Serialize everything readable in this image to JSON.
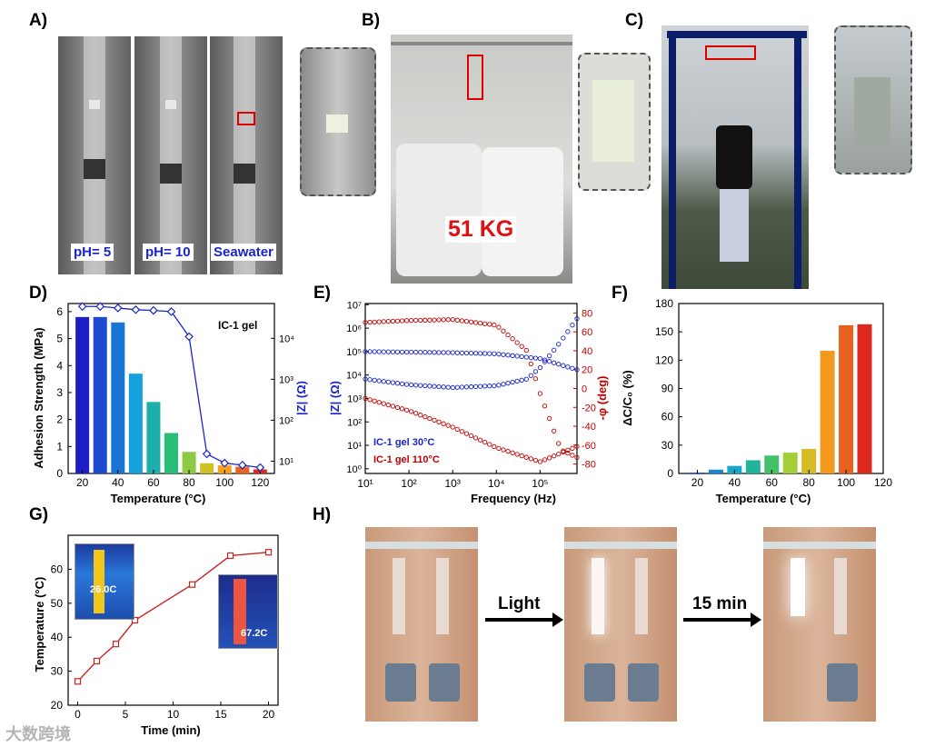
{
  "panels": {
    "A": {
      "label": "A)",
      "tubes": [
        "pH= 5",
        "pH= 10",
        "Seawater"
      ]
    },
    "B": {
      "label": "B)",
      "load": "51 KG"
    },
    "C": {
      "label": "C)"
    },
    "D": {
      "label": "D)"
    },
    "E": {
      "label": "E)"
    },
    "F": {
      "label": "F)"
    },
    "G": {
      "label": "G)",
      "therm_low": "26.0C",
      "therm_high": "67.2C"
    },
    "H": {
      "label": "H)",
      "step1": "Light",
      "step2": "15 min"
    }
  },
  "watermark": "大数跨境",
  "colors": {
    "blue": "#1a25c9",
    "red": "#c00000",
    "line_red": "#cc2222"
  },
  "chart_data": [
    {
      "id": "D",
      "type": "bar",
      "title": "",
      "annotation": "IC-1 gel",
      "xlabel": "Temperature (°C)",
      "ylabel": "Adhesion Strength (MPa)",
      "y2label": "|Z| (Ω)",
      "categories": [
        20,
        30,
        40,
        50,
        60,
        70,
        80,
        90,
        100,
        110,
        120
      ],
      "values": [
        5.8,
        5.8,
        5.6,
        3.7,
        2.65,
        1.5,
        0.8,
        0.38,
        0.3,
        0.25,
        0.15
      ],
      "ylim": [
        0,
        6.3
      ],
      "yticks": [
        0,
        1,
        2,
        3,
        4,
        5,
        6
      ],
      "xticks": [
        20,
        40,
        60,
        80,
        100,
        120
      ],
      "y2_scale": "log",
      "y2ticks": [
        "10¹",
        "10²",
        "10³",
        "10⁴"
      ],
      "z_series": {
        "x": [
          20,
          30,
          40,
          50,
          60,
          70,
          80,
          90,
          100,
          110,
          120
        ],
        "values": [
          60000,
          60000,
          55000,
          50000,
          48000,
          45000,
          11000,
          15,
          9,
          8,
          7
        ]
      }
    },
    {
      "id": "E",
      "type": "line",
      "title": "",
      "xlabel": "Frequency (Hz)",
      "ylabel": "|Z| (Ω)",
      "y2label": "-φ (deg)",
      "x_scale": "log",
      "xticks": [
        "10¹",
        "10²",
        "10³",
        "10⁴",
        "10⁵"
      ],
      "yticks": [
        "10⁰",
        "10¹",
        "10²",
        "10³",
        "10⁴",
        "10⁵",
        "10⁶",
        "10⁷"
      ],
      "y2ticks": [
        -80,
        -60,
        -40,
        -20,
        0,
        20,
        40,
        60,
        80
      ],
      "legend": [
        "IC-1 gel 30°C",
        "IC-1 gel 110°C"
      ],
      "series": [
        {
          "name": "IC-1 gel 30°C",
          "axis": "Z",
          "x": [
            10,
            100,
            1000,
            10000,
            100000,
            700000
          ],
          "values": [
            100000,
            95000,
            90000,
            80000,
            50000,
            17000
          ]
        },
        {
          "name": "IC-1 gel 30°C",
          "axis": "phase",
          "x": [
            10,
            100,
            1000,
            10000,
            50000,
            100000,
            300000,
            700000
          ],
          "values": [
            10,
            4,
            1,
            3,
            10,
            22,
            50,
            74
          ]
        },
        {
          "name": "IC-1 gel 110°C",
          "axis": "Z",
          "x": [
            10,
            100,
            1000,
            10000,
            100000,
            700000
          ],
          "values": [
            1000,
            300,
            60,
            8,
            2,
            9
          ]
        },
        {
          "name": "IC-1 gel 110°C",
          "axis": "phase",
          "x": [
            10,
            100,
            1000,
            10000,
            50000,
            100000,
            300000,
            700000
          ],
          "values": [
            70,
            72,
            73,
            67,
            40,
            -5,
            -65,
            -73
          ]
        }
      ]
    },
    {
      "id": "F",
      "type": "bar",
      "title": "",
      "xlabel": "Temperature (°C)",
      "ylabel": "ΔC/C₀ (%)",
      "categories": [
        20,
        30,
        40,
        50,
        60,
        70,
        80,
        90,
        100,
        110
      ],
      "values": [
        1,
        4,
        8,
        14,
        19,
        22,
        26,
        130,
        157,
        158
      ],
      "ylim": [
        0,
        180
      ],
      "yticks": [
        0,
        30,
        60,
        90,
        120,
        150,
        180
      ],
      "xticks": [
        20,
        40,
        60,
        80,
        100,
        120
      ]
    },
    {
      "id": "G",
      "type": "line",
      "title": "",
      "xlabel": "Time (min)",
      "ylabel": "Temperature (°C)",
      "x": [
        0,
        2,
        4,
        6,
        12,
        16,
        20
      ],
      "values": [
        27,
        33,
        38,
        45,
        55.5,
        64,
        65
      ],
      "ylim": [
        20,
        70
      ],
      "yticks": [
        20,
        30,
        40,
        50,
        60
      ],
      "xticks": [
        0,
        5,
        10,
        15,
        20
      ]
    }
  ]
}
